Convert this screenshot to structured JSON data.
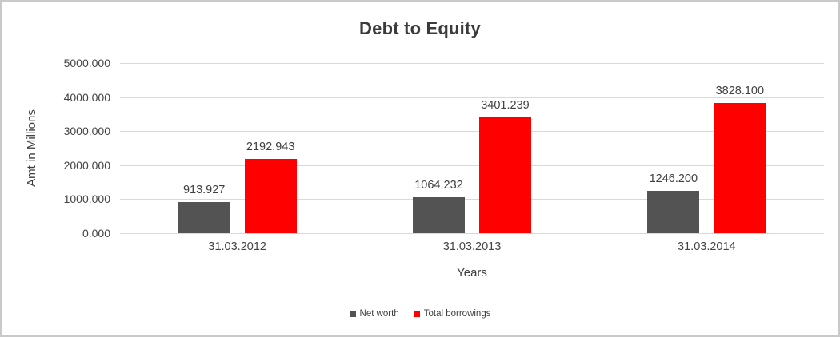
{
  "frame": {
    "background": "#ffffff",
    "border_color": "#c9c9c9"
  },
  "chart_data": {
    "type": "bar",
    "title": "Debt to Equity",
    "xlabel": "Years",
    "ylabel": "Amt in Millions",
    "categories": [
      "31.03.2012",
      "31.03.2013",
      "31.03.2014"
    ],
    "series": [
      {
        "name": "Net worth",
        "color": "#535353",
        "values": [
          913.927,
          1064.232,
          1246.2
        ],
        "value_labels": [
          "913.927",
          "1064.232",
          "1246.200"
        ]
      },
      {
        "name": "Total borrowings",
        "color": "#ff0000",
        "values": [
          2192.943,
          3401.239,
          3828.1
        ],
        "value_labels": [
          "2192.943",
          "3401.239",
          "3828.100"
        ]
      }
    ],
    "ylim": [
      0,
      5000
    ],
    "ytick_step": 1000,
    "ytick_labels": [
      "0.000",
      "1000.000",
      "2000.000",
      "3000.000",
      "4000.000",
      "5000.000"
    ],
    "grid": true,
    "gridline_color": "#d9d9d9",
    "legend_position": "bottom",
    "text_color": "#404040"
  }
}
